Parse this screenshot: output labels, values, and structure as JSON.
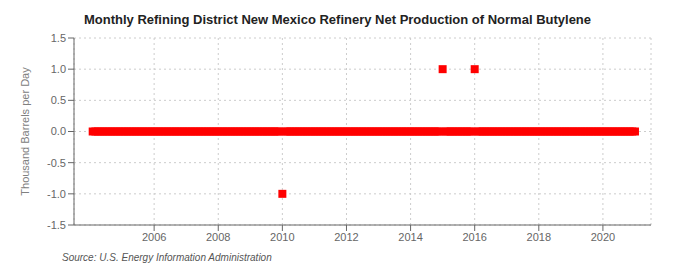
{
  "chart_data": {
    "type": "scatter",
    "title": "Monthly Refining District New Mexico Refinery Net Production of Normal Butylene",
    "y_label": "Thousand Barrels per Day",
    "annotations": [
      "Source: U.S. Energy Information Administration"
    ],
    "color": "#ff0000",
    "marker": "square",
    "grid": true,
    "xlim": [
      2003.5,
      2021.5
    ],
    "xticks": [
      2006,
      2008,
      2010,
      2012,
      2014,
      2016,
      2018,
      2020
    ],
    "ylim": [
      -1.5,
      1.5
    ],
    "yticks": [
      -1.5,
      {
        "value": -1.0,
        "label": "-1.0"
      },
      -0.5,
      {
        "value": 0.0,
        "label": "0.0"
      },
      0.5,
      {
        "value": 1.0,
        "label": "1.0"
      },
      1.5
    ],
    "x": [
      2004.083,
      2004.167,
      2004.25,
      2004.333,
      2004.417,
      2004.5,
      2004.583,
      2004.667,
      2004.75,
      2004.833,
      2004.917,
      2005.0,
      2005.083,
      2005.167,
      2005.25,
      2005.333,
      2005.417,
      2005.5,
      2005.583,
      2005.667,
      2005.75,
      2005.833,
      2005.917,
      2006.0,
      2006.083,
      2006.167,
      2006.25,
      2006.333,
      2006.417,
      2006.5,
      2006.583,
      2006.667,
      2006.75,
      2006.833,
      2006.917,
      2007.0,
      2007.083,
      2007.167,
      2007.25,
      2007.333,
      2007.417,
      2007.5,
      2007.583,
      2007.667,
      2007.75,
      2007.833,
      2007.917,
      2008.0,
      2008.083,
      2008.167,
      2008.25,
      2008.333,
      2008.417,
      2008.5,
      2008.583,
      2008.667,
      2008.75,
      2008.833,
      2008.917,
      2009.0,
      2009.083,
      2009.167,
      2009.25,
      2009.333,
      2009.417,
      2009.5,
      2009.583,
      2009.667,
      2009.75,
      2009.833,
      2009.917,
      2010.0,
      2010.083,
      2010.167,
      2010.25,
      2010.333,
      2010.417,
      2010.5,
      2010.583,
      2010.667,
      2010.75,
      2010.833,
      2010.917,
      2011.0,
      2011.083,
      2011.167,
      2011.25,
      2011.333,
      2011.417,
      2011.5,
      2011.583,
      2011.667,
      2011.75,
      2011.833,
      2011.917,
      2012.0,
      2012.083,
      2012.167,
      2012.25,
      2012.333,
      2012.417,
      2012.5,
      2012.583,
      2012.667,
      2012.75,
      2012.833,
      2012.917,
      2013.0,
      2013.083,
      2013.167,
      2013.25,
      2013.333,
      2013.417,
      2013.5,
      2013.583,
      2013.667,
      2013.75,
      2013.833,
      2013.917,
      2014.0,
      2014.083,
      2014.167,
      2014.25,
      2014.333,
      2014.417,
      2014.5,
      2014.583,
      2014.667,
      2014.75,
      2014.833,
      2014.917,
      2015.0,
      2015.083,
      2015.167,
      2015.25,
      2015.333,
      2015.417,
      2015.5,
      2015.583,
      2015.667,
      2015.75,
      2015.833,
      2015.917,
      2016.0,
      2016.083,
      2016.167,
      2016.25,
      2016.333,
      2016.417,
      2016.5,
      2016.583,
      2016.667,
      2016.75,
      2016.833,
      2016.917,
      2017.0,
      2017.083,
      2017.167,
      2017.25,
      2017.333,
      2017.417,
      2017.5,
      2017.583,
      2017.667,
      2017.75,
      2017.833,
      2017.917,
      2018.0,
      2018.083,
      2018.167,
      2018.25,
      2018.333,
      2018.417,
      2018.5,
      2018.583,
      2018.667,
      2018.75,
      2018.833,
      2018.917,
      2019.0,
      2019.083,
      2019.167,
      2019.25,
      2019.333,
      2019.417,
      2019.5,
      2019.583,
      2019.667,
      2019.75,
      2019.833,
      2019.917,
      2020.0,
      2020.083,
      2020.167,
      2020.25,
      2020.333,
      2020.417,
      2020.5,
      2020.583,
      2020.667,
      2020.75,
      2020.833,
      2020.917,
      2021.0
    ],
    "values": [
      0.0,
      0.0,
      0.0,
      0.0,
      0.0,
      0.0,
      0.0,
      0.0,
      0.0,
      0.0,
      0.0,
      0.0,
      0.0,
      0.0,
      0.0,
      0.0,
      0.0,
      0.0,
      0.0,
      0.0,
      0.0,
      0.0,
      0.0,
      0.0,
      0.0,
      0.0,
      0.0,
      0.0,
      0.0,
      0.0,
      0.0,
      0.0,
      0.0,
      0.0,
      0.0,
      0.0,
      0.0,
      0.0,
      0.0,
      0.0,
      0.0,
      0.0,
      0.0,
      0.0,
      0.0,
      0.0,
      0.0,
      0.0,
      0.0,
      0.0,
      0.0,
      0.0,
      0.0,
      0.0,
      0.0,
      0.0,
      0.0,
      0.0,
      0.0,
      0.0,
      0.0,
      0.0,
      0.0,
      0.0,
      0.0,
      0.0,
      0.0,
      0.0,
      0.0,
      0.0,
      0.0,
      -1.0,
      0.0,
      0.0,
      0.0,
      0.0,
      0.0,
      0.0,
      0.0,
      0.0,
      0.0,
      0.0,
      0.0,
      0.0,
      0.0,
      0.0,
      0.0,
      0.0,
      0.0,
      0.0,
      0.0,
      0.0,
      0.0,
      0.0,
      0.0,
      0.0,
      0.0,
      0.0,
      0.0,
      0.0,
      0.0,
      0.0,
      0.0,
      0.0,
      0.0,
      0.0,
      0.0,
      0.0,
      0.0,
      0.0,
      0.0,
      0.0,
      0.0,
      0.0,
      0.0,
      0.0,
      0.0,
      0.0,
      0.0,
      0.0,
      0.0,
      0.0,
      0.0,
      0.0,
      0.0,
      0.0,
      0.0,
      0.0,
      0.0,
      0.0,
      0.0,
      1.0,
      0.0,
      0.0,
      0.0,
      0.0,
      0.0,
      0.0,
      0.0,
      0.0,
      0.0,
      0.0,
      0.0,
      1.0,
      0.0,
      0.0,
      0.0,
      0.0,
      0.0,
      0.0,
      0.0,
      0.0,
      0.0,
      0.0,
      0.0,
      0.0,
      0.0,
      0.0,
      0.0,
      0.0,
      0.0,
      0.0,
      0.0,
      0.0,
      0.0,
      0.0,
      0.0,
      0.0,
      0.0,
      0.0,
      0.0,
      0.0,
      0.0,
      0.0,
      0.0,
      0.0,
      0.0,
      0.0,
      0.0,
      0.0,
      0.0,
      0.0,
      0.0,
      0.0,
      0.0,
      0.0,
      0.0,
      0.0,
      0.0,
      0.0,
      0.0,
      0.0,
      0.0,
      0.0,
      0.0,
      0.0,
      0.0,
      0.0,
      0.0,
      0.0,
      0.0,
      0.0,
      0.0,
      0.0
    ]
  }
}
